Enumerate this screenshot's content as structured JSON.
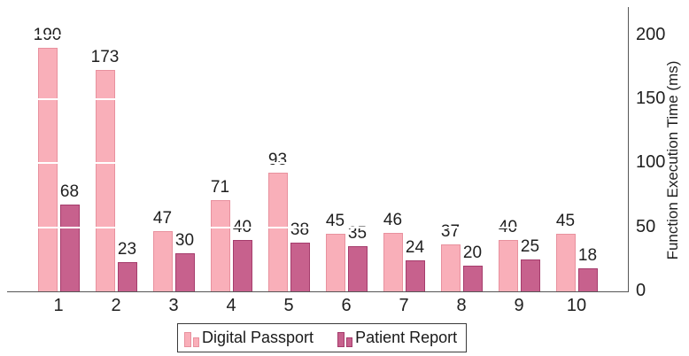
{
  "chart_data": {
    "type": "bar",
    "title": "",
    "categories": [
      "1",
      "2",
      "3",
      "4",
      "5",
      "6",
      "7",
      "8",
      "9",
      "10"
    ],
    "series": [
      {
        "name": "Digital Passport",
        "values": [
          190,
          173,
          47,
          71,
          93,
          45,
          46,
          37,
          40,
          45
        ],
        "fill": "#F9AFB9",
        "border": "#E8919E"
      },
      {
        "name": "Patient Report",
        "values": [
          68,
          23,
          30,
          40,
          38,
          35,
          24,
          20,
          25,
          18
        ],
        "fill": "#C7618D",
        "border": "#A53C6C"
      }
    ],
    "xlabel": "",
    "ylabel": "Function Execution Time (ms)",
    "yticks": [
      0,
      50,
      100,
      150,
      200
    ],
    "ylim": [
      0,
      222
    ],
    "y_axis_side": "right",
    "grid": "white horizontal gridlines drawn over bars",
    "bar_value_labels": true,
    "legend_position": "bottom",
    "axis_color": "#565656",
    "text_color": "#1f1f1f"
  }
}
